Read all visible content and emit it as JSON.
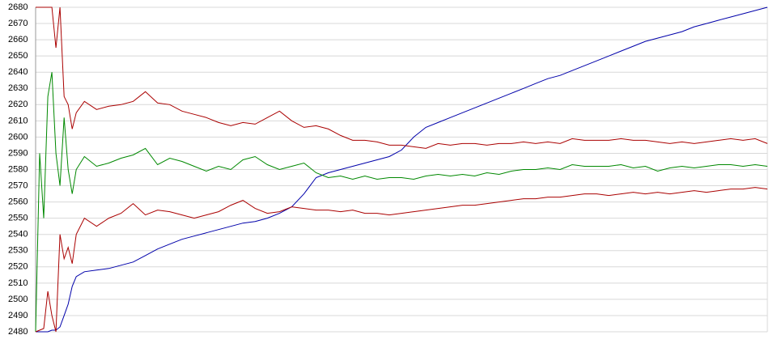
{
  "chart_data": {
    "type": "line",
    "x": [
      0,
      5,
      10,
      15,
      20,
      25,
      30,
      35,
      40,
      45,
      50,
      60,
      75,
      90,
      105,
      120,
      135,
      150,
      165,
      180,
      195,
      210,
      225,
      240,
      255,
      270,
      285,
      300,
      315,
      330,
      345,
      360,
      375,
      390,
      405,
      420,
      435,
      450,
      465,
      480,
      495,
      510,
      525,
      540,
      555,
      570,
      585,
      600,
      615,
      630,
      645,
      660,
      675,
      690,
      705,
      720,
      735,
      750,
      765,
      780,
      795,
      810,
      825,
      840,
      855,
      870,
      885,
      900
    ],
    "xlim": [
      0,
      900
    ],
    "ylim": [
      2480,
      2680
    ],
    "yticks": [
      2480,
      2490,
      2500,
      2510,
      2520,
      2530,
      2540,
      2550,
      2560,
      2570,
      2580,
      2590,
      2600,
      2610,
      2620,
      2630,
      2640,
      2650,
      2660,
      2670,
      2680
    ],
    "grid": true,
    "series": [
      {
        "color": "#0000aa",
        "values": [
          2480,
          2480,
          2480,
          2480,
          2481,
          2481,
          2483,
          2490,
          2497,
          2508,
          2514,
          2517,
          2518,
          2519,
          2521,
          2523,
          2527,
          2531,
          2534,
          2537,
          2539,
          2541,
          2543,
          2545,
          2547,
          2548,
          2550,
          2553,
          2557,
          2565,
          2575,
          2578,
          2580,
          2582,
          2584,
          2586,
          2588,
          2592,
          2600,
          2606,
          2609,
          2612,
          2615,
          2618,
          2621,
          2624,
          2627,
          2630,
          2633,
          2636,
          2638,
          2641,
          2644,
          2647,
          2650,
          2653,
          2656,
          2659,
          2661,
          2663,
          2665,
          2668,
          2670,
          2672,
          2674,
          2676,
          2678,
          2680
        ]
      },
      {
        "color": "#aa0000",
        "values": [
          2680,
          2680,
          2680,
          2680,
          2680,
          2655,
          2680,
          2625,
          2620,
          2605,
          2615,
          2622,
          2617,
          2619,
          2620,
          2622,
          2628,
          2621,
          2620,
          2616,
          2614,
          2612,
          2609,
          2607,
          2609,
          2608,
          2612,
          2616,
          2610,
          2606,
          2607,
          2605,
          2601,
          2598,
          2598,
          2597,
          2595,
          2595,
          2594,
          2593,
          2596,
          2595,
          2596,
          2596,
          2595,
          2596,
          2596,
          2597,
          2596,
          2597,
          2596,
          2599,
          2598,
          2598,
          2598,
          2599,
          2598,
          2598,
          2597,
          2596,
          2597,
          2596,
          2597,
          2598,
          2599,
          2598,
          2599,
          2596
        ]
      },
      {
        "color": "#008800",
        "values": [
          2480,
          2590,
          2550,
          2625,
          2640,
          2590,
          2570,
          2612,
          2580,
          2565,
          2580,
          2588,
          2582,
          2584,
          2587,
          2589,
          2593,
          2583,
          2587,
          2585,
          2582,
          2579,
          2582,
          2580,
          2586,
          2588,
          2583,
          2580,
          2582,
          2584,
          2578,
          2575,
          2576,
          2574,
          2576,
          2574,
          2575,
          2575,
          2574,
          2576,
          2577,
          2576,
          2577,
          2576,
          2578,
          2577,
          2579,
          2580,
          2580,
          2581,
          2580,
          2583,
          2582,
          2582,
          2582,
          2583,
          2581,
          2582,
          2579,
          2581,
          2582,
          2581,
          2582,
          2583,
          2583,
          2582,
          2583,
          2582
        ]
      },
      {
        "color": "#aa0000",
        "values": [
          2480,
          2481,
          2482,
          2505,
          2490,
          2480,
          2540,
          2525,
          2532,
          2522,
          2540,
          2550,
          2545,
          2550,
          2553,
          2559,
          2552,
          2555,
          2554,
          2552,
          2550,
          2552,
          2554,
          2558,
          2561,
          2556,
          2553,
          2554,
          2557,
          2556,
          2555,
          2555,
          2554,
          2555,
          2553,
          2553,
          2552,
          2553,
          2554,
          2555,
          2556,
          2557,
          2558,
          2558,
          2559,
          2560,
          2561,
          2562,
          2562,
          2563,
          2563,
          2564,
          2565,
          2565,
          2564,
          2565,
          2566,
          2565,
          2566,
          2565,
          2566,
          2567,
          2566,
          2567,
          2568,
          2568,
          2569,
          2568
        ]
      }
    ]
  }
}
